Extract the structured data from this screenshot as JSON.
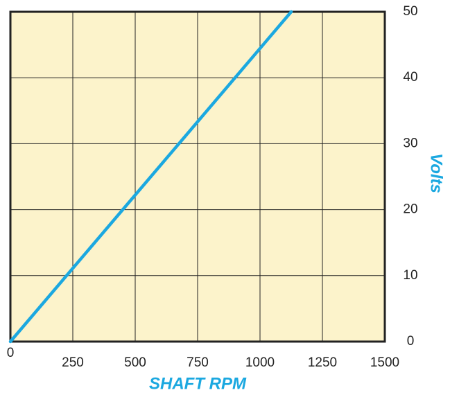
{
  "chart_data": {
    "type": "line",
    "x_label": "SHAFT RPM",
    "y_label": "Volts",
    "series": [
      {
        "name": null,
        "color": "#1ba8e0",
        "x": [
          0,
          1125
        ],
        "values": [
          0,
          50
        ]
      }
    ],
    "xlim": [
      0,
      1500
    ],
    "xticks": [
      0,
      250,
      500,
      750,
      1000,
      1250,
      1500
    ],
    "ylim": [
      0,
      50
    ],
    "yticks": [
      0,
      10,
      20,
      30,
      40,
      50
    ],
    "grid": true,
    "y_axis_side": "right",
    "background": "#fcf3cb"
  }
}
